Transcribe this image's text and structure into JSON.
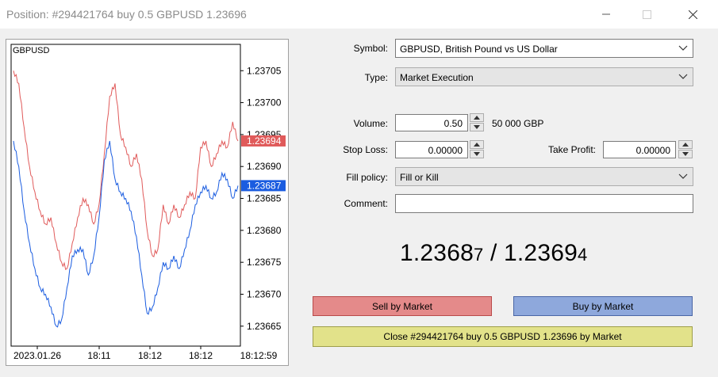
{
  "window": {
    "title": "Position: #294421764 buy 0.5 GBPUSD 1.23696"
  },
  "chart": {
    "symbol": "GBPUSD",
    "y_ticks": [
      "1.23705",
      "1.23700",
      "1.23695",
      "1.23690",
      "1.23685",
      "1.23680",
      "1.23675",
      "1.23670",
      "1.23665"
    ],
    "x_ticks": [
      "2023.01.26",
      "18:11",
      "18:12",
      "18:12",
      "18:12:59"
    ],
    "ask_tag": "1.23694",
    "bid_tag": "1.23687",
    "ask_color": "#e05a5a",
    "bid_color": "#1a5ce0"
  },
  "chart_data": {
    "type": "line",
    "title": "GBPUSD",
    "ylim": [
      1.23662,
      1.23709
    ],
    "series": [
      {
        "name": "Ask",
        "values": [
          1.23705,
          1.23703,
          1.23696,
          1.2369,
          1.23686,
          1.23683,
          1.23681,
          1.23682,
          1.23678,
          1.23675,
          1.23674,
          1.23678,
          1.23682,
          1.23685,
          1.23684,
          1.23681,
          1.23684,
          1.23692,
          1.23701,
          1.23703,
          1.23695,
          1.23693,
          1.2369,
          1.23692,
          1.23688,
          1.2368,
          1.23676,
          1.23677,
          1.23684,
          1.23681,
          1.23684,
          1.23682,
          1.23684,
          1.23686,
          1.23685,
          1.23693,
          1.23694,
          1.2369,
          1.23692,
          1.23694,
          1.23693,
          1.23697,
          1.23694
        ]
      },
      {
        "name": "Bid",
        "values": [
          1.23694,
          1.2369,
          1.23683,
          1.23678,
          1.23674,
          1.23671,
          1.2367,
          1.23668,
          1.23665,
          1.23666,
          1.23671,
          1.23676,
          1.23677,
          1.23677,
          1.23673,
          1.23676,
          1.23682,
          1.23691,
          1.23694,
          1.23688,
          1.23686,
          1.23685,
          1.23683,
          1.23679,
          1.23673,
          1.23667,
          1.23668,
          1.23671,
          1.23675,
          1.23674,
          1.23676,
          1.23674,
          1.23677,
          1.2368,
          1.23684,
          1.23686,
          1.23687,
          1.23685,
          1.23686,
          1.23689,
          1.23688,
          1.23685,
          1.23687
        ]
      }
    ]
  },
  "form": {
    "symbol_label": "Symbol:",
    "symbol_value": "GBPUSD, British Pound vs US Dollar",
    "type_label": "Type:",
    "type_value": "Market Execution",
    "volume_label": "Volume:",
    "volume_value": "0.50",
    "volume_note": "50 000 GBP",
    "stoploss_label": "Stop Loss:",
    "stoploss_value": "0.00000",
    "takeprofit_label": "Take Profit:",
    "takeprofit_value": "0.00000",
    "fillpolicy_label": "Fill policy:",
    "fillpolicy_value": "Fill or Kill",
    "comment_label": "Comment:",
    "comment_value": ""
  },
  "quote": {
    "bid_main": "1.2368",
    "bid_small": "7",
    "separator": " / ",
    "ask_main": "1.2369",
    "ask_small": "4"
  },
  "buttons": {
    "sell": "Sell by Market",
    "buy": "Buy by Market",
    "close": "Close #294421764 buy 0.5 GBPUSD 1.23696 by Market"
  }
}
